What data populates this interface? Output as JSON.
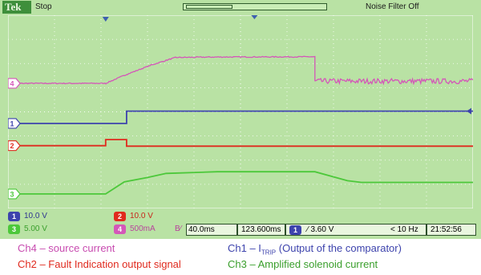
{
  "scope": {
    "brand": "Tek",
    "run_state": "Stop",
    "noise_filter": "Noise Filter Off"
  },
  "colors": {
    "ch1": "#3d43ad",
    "ch2": "#e02a1e",
    "ch3": "#4cc83a",
    "ch4": "#d457b8",
    "screen": "#b9e2a4",
    "grid": "#ffffff"
  },
  "chart_data": {
    "type": "line",
    "x_divisions": 10,
    "y_divisions": 8,
    "grid": true,
    "markers": [
      {
        "channel": "Ch4",
        "label": "4"
      },
      {
        "channel": "Ch1",
        "label": "1"
      },
      {
        "channel": "Ch2",
        "label": "2"
      },
      {
        "channel": "Ch3",
        "label": "3"
      }
    ],
    "series": [
      {
        "name": "Ch4",
        "style": "noisy",
        "points": [
          [
            0,
            1.18
          ],
          [
            2.1,
            1.18
          ],
          [
            2.55,
            1.55
          ],
          [
            3.1,
            1.95
          ],
          [
            3.6,
            2.25
          ],
          [
            4.5,
            2.27
          ],
          [
            6.6,
            2.28
          ],
          [
            6.6,
            1.27
          ],
          [
            10,
            1.27
          ]
        ]
      },
      {
        "name": "Ch1",
        "style": "clean",
        "points": [
          [
            0,
            -0.48
          ],
          [
            2.55,
            -0.48
          ],
          [
            2.55,
            0.03
          ],
          [
            10,
            0.03
          ]
        ]
      },
      {
        "name": "Ch2",
        "style": "clean",
        "points": [
          [
            0,
            -1.4
          ],
          [
            2.1,
            -1.4
          ],
          [
            2.1,
            -1.15
          ],
          [
            2.55,
            -1.15
          ],
          [
            2.55,
            -1.42
          ],
          [
            10,
            -1.42
          ]
        ]
      },
      {
        "name": "Ch3",
        "style": "clean",
        "points": [
          [
            0,
            -3.4
          ],
          [
            2.1,
            -3.4
          ],
          [
            2.5,
            -2.9
          ],
          [
            3,
            -2.72
          ],
          [
            3.4,
            -2.55
          ],
          [
            4.5,
            -2.48
          ],
          [
            6.6,
            -2.48
          ],
          [
            7.3,
            -2.85
          ],
          [
            7.6,
            -2.92
          ],
          [
            10,
            -2.92
          ]
        ]
      }
    ]
  },
  "readout": {
    "ch1_num": "1",
    "ch1_scale": "10.0 V",
    "ch2_num": "2",
    "ch2_scale": "10.0 V",
    "ch3_num": "3",
    "ch3_scale": "5.00 V",
    "ch4_num": "4",
    "ch4_scale": "500mA",
    "bw_mark": "B⁄",
    "timebase": "40.0ms",
    "position": "123.600ms",
    "trigger_ch": "1",
    "trigger_level": "∕ 3.60 V",
    "trigger_freq": "< 10 Hz",
    "clock": "21:52:56"
  },
  "legend": {
    "ch4": "Ch4 – source current",
    "ch1_prefix": "Ch1 – I",
    "ch1_sub": "TRIP",
    "ch1_suffix": " (Output of the comparator)",
    "ch2": "Ch2 – Fault Indication output signal",
    "ch3": "Ch3 – Amplified solenoid current"
  }
}
